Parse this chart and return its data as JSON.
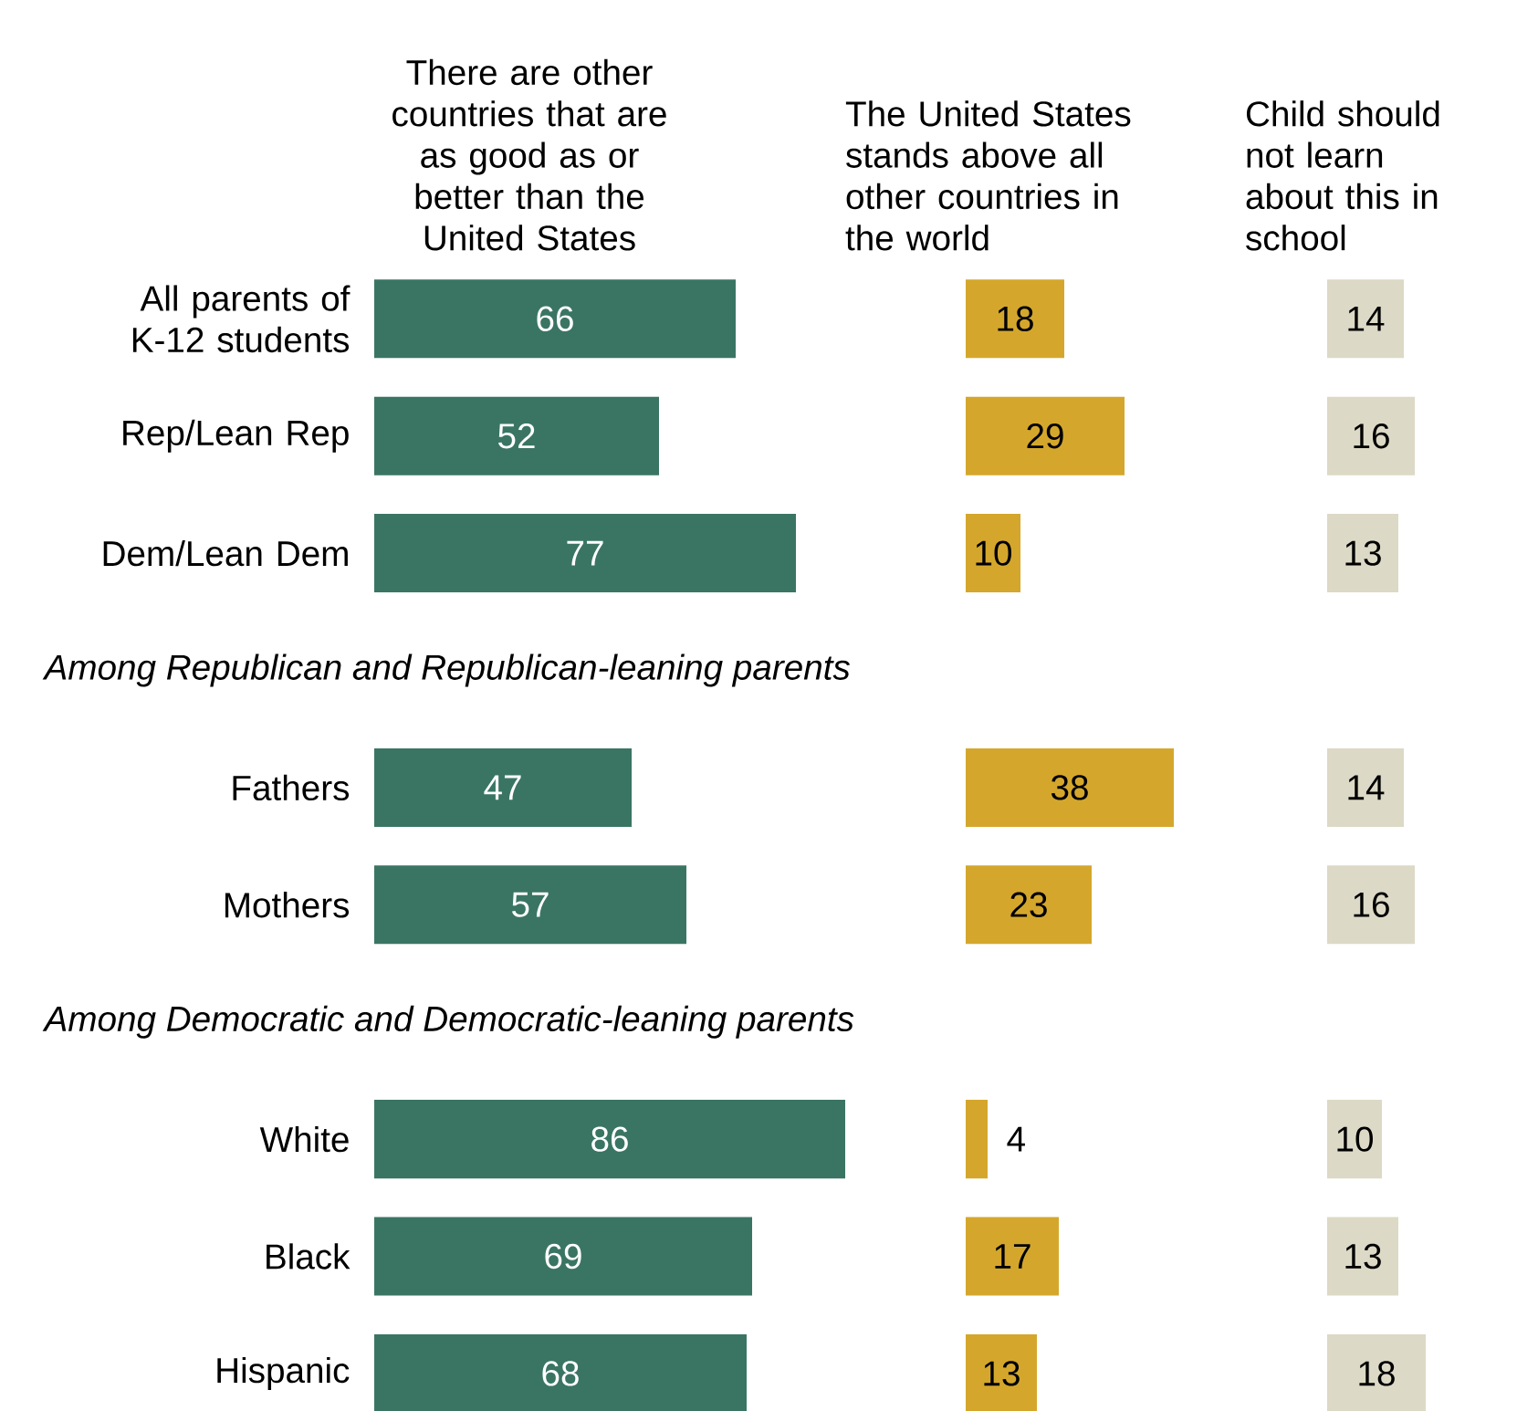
{
  "chart_data": [
    {
      "type": "bar",
      "orientation": "horizontal",
      "title": "There are other countries that are as good as or better than the United States",
      "categories": [
        "All parents of K-12 students",
        "Rep/Lean Rep",
        "Dem/Lean Dem",
        "Among Republican and Republican-leaning parents",
        "Fathers",
        "Mothers",
        "Among Democratic and Democratic-leaning parents",
        "White",
        "Black",
        "Hispanic"
      ],
      "values": [
        66,
        52,
        77,
        null,
        47,
        57,
        null,
        86,
        69,
        68
      ],
      "color": "#3a7563",
      "data_labels": true,
      "tick_labels": "y"
    },
    {
      "type": "bar",
      "orientation": "horizontal",
      "title": "The United States stands above all other countries in the world",
      "values": [
        18,
        29,
        10,
        null,
        38,
        23,
        null,
        4,
        17,
        13
      ],
      "color": "#d4a72c",
      "data_labels": true,
      "tick_labels": false
    },
    {
      "type": "bar",
      "orientation": "horizontal",
      "title": "Child should not learn about this in school",
      "values": [
        14,
        16,
        13,
        null,
        14,
        16,
        null,
        10,
        13,
        18
      ],
      "color": "#dcd9c6",
      "data_labels": true,
      "tick_labels": false
    }
  ]
}
